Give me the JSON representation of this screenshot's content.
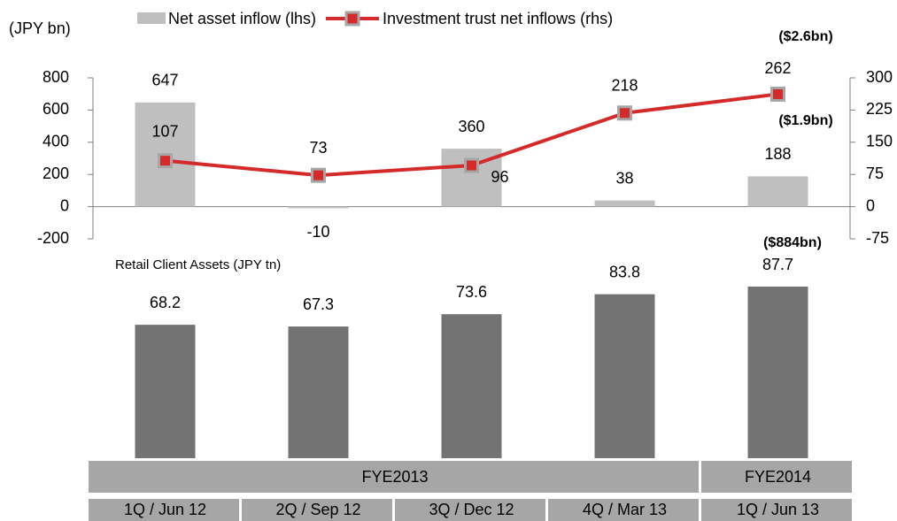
{
  "chart_data": [
    {
      "type": "bar_line",
      "axis_label": "(JPY bn)",
      "series": [
        {
          "name": "Net asset inflow (lhs)",
          "type": "bar",
          "color": "#bfbfbf",
          "values": [
            647,
            -10,
            360,
            38,
            188
          ]
        },
        {
          "name": "Investment trust net inflows (rhs)",
          "type": "line",
          "axis": "y2",
          "color": "#d42a2a",
          "marker_color": "#a6a6a6",
          "values": [
            107,
            73,
            96,
            218,
            262
          ]
        }
      ],
      "ylim": [
        -200,
        800
      ],
      "yticks": [
        -200,
        0,
        200,
        400,
        600,
        800
      ],
      "y2lim": [
        -75,
        300
      ],
      "y2ticks": [
        -75,
        0,
        75,
        150,
        225,
        300
      ],
      "annotations": [
        "($2.6bn)",
        "($1.9bn)",
        "($884bn)"
      ]
    },
    {
      "type": "bar",
      "title": "Retail Client Assets (JPY tn)",
      "color": "#737373",
      "values": [
        68.2,
        67.3,
        73.6,
        83.8,
        87.7
      ]
    }
  ],
  "x_axis": {
    "groups": [
      {
        "name": "FYE2013",
        "categories": [
          "1Q / Jun 12",
          "2Q / Sep 12",
          "3Q / Dec 12",
          "4Q / Mar 13"
        ]
      },
      {
        "name": "FYE2014",
        "categories": [
          "1Q / Jun 13"
        ]
      }
    ]
  }
}
